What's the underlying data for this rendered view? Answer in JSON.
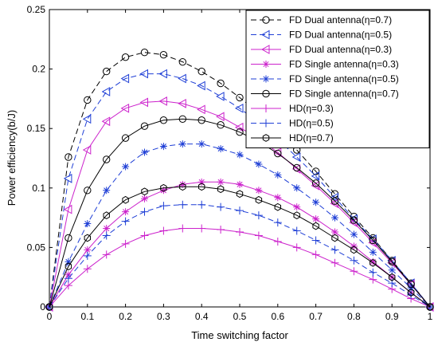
{
  "chart_data": {
    "type": "line",
    "xlabel": "Time switching factor",
    "ylabel": "Power efficiency(b/J)",
    "xlim": [
      0,
      1
    ],
    "ylim": [
      0,
      0.25
    ],
    "x_ticks": [
      "0",
      "0.1",
      "0.2",
      "0.3",
      "0.4",
      "0.5",
      "0.6",
      "0.7",
      "0.8",
      "0.9",
      "1"
    ],
    "y_ticks": [
      "0",
      "0.05",
      "0.1",
      "0.15",
      "0.2",
      "0.25"
    ],
    "grid": false,
    "legend_position": "top-right",
    "x": [
      0,
      0.05,
      0.1,
      0.15,
      0.2,
      0.25,
      0.3,
      0.35,
      0.4,
      0.45,
      0.5,
      0.55,
      0.6,
      0.65,
      0.7,
      0.75,
      0.8,
      0.85,
      0.9,
      0.95,
      1
    ],
    "series": [
      {
        "name": "FD Dual antenna(η=0.7)",
        "color": "#000000",
        "dash": "dashed",
        "marker": "circle",
        "values": [
          0,
          0.126,
          0.174,
          0.198,
          0.21,
          0.214,
          0.212,
          0.206,
          0.198,
          0.188,
          0.176,
          0.163,
          0.148,
          0.132,
          0.114,
          0.095,
          0.076,
          0.058,
          0.039,
          0.02,
          0
        ]
      },
      {
        "name": "FD Dual antenna(η=0.5)",
        "color": "#1f3fd6",
        "dash": "dashed",
        "marker": "triangle-left",
        "values": [
          0,
          0.108,
          0.158,
          0.181,
          0.192,
          0.196,
          0.196,
          0.192,
          0.186,
          0.177,
          0.167,
          0.155,
          0.141,
          0.126,
          0.11,
          0.092,
          0.074,
          0.057,
          0.039,
          0.02,
          0
        ]
      },
      {
        "name": "FD Dual antenna(η=0.3)",
        "color": "#cc22cc",
        "dash": "solid",
        "marker": "triangle-left",
        "values": [
          0,
          0.082,
          0.132,
          0.156,
          0.167,
          0.172,
          0.173,
          0.171,
          0.166,
          0.16,
          0.151,
          0.141,
          0.13,
          0.116,
          0.102,
          0.087,
          0.071,
          0.054,
          0.037,
          0.019,
          0
        ]
      },
      {
        "name": "FD Single antenna(η=0.3)",
        "color": "#cc22cc",
        "dash": "solid",
        "marker": "asterisk",
        "values": [
          0,
          0.027,
          0.048,
          0.066,
          0.08,
          0.091,
          0.098,
          0.103,
          0.105,
          0.105,
          0.103,
          0.098,
          0.092,
          0.084,
          0.074,
          0.063,
          0.051,
          0.038,
          0.025,
          0.012,
          0
        ]
      },
      {
        "name": "FD Single antenna(η=0.5)",
        "color": "#1f3fd6",
        "dash": "dashed",
        "marker": "asterisk",
        "values": [
          0,
          0.038,
          0.07,
          0.098,
          0.118,
          0.13,
          0.135,
          0.137,
          0.137,
          0.133,
          0.128,
          0.12,
          0.111,
          0.1,
          0.088,
          0.075,
          0.061,
          0.046,
          0.031,
          0.016,
          0
        ]
      },
      {
        "name": "FD Single antenna(η=0.7)",
        "color": "#000000",
        "dash": "solid",
        "marker": "circle",
        "values": [
          0,
          0.058,
          0.098,
          0.124,
          0.142,
          0.152,
          0.157,
          0.158,
          0.157,
          0.153,
          0.147,
          0.139,
          0.129,
          0.117,
          0.104,
          0.089,
          0.073,
          0.056,
          0.038,
          0.019,
          0
        ]
      },
      {
        "name": "HD(η=0.3)",
        "color": "#cc22cc",
        "dash": "solid",
        "marker": "plus",
        "values": [
          0,
          0.018,
          0.032,
          0.044,
          0.053,
          0.06,
          0.064,
          0.066,
          0.066,
          0.065,
          0.063,
          0.06,
          0.055,
          0.05,
          0.044,
          0.037,
          0.03,
          0.023,
          0.015,
          0.007,
          0
        ]
      },
      {
        "name": "HD(η=0.5)",
        "color": "#1f3fd6",
        "dash": "dashed",
        "marker": "plus",
        "values": [
          0,
          0.024,
          0.043,
          0.06,
          0.072,
          0.08,
          0.085,
          0.086,
          0.086,
          0.084,
          0.081,
          0.077,
          0.071,
          0.064,
          0.056,
          0.048,
          0.039,
          0.029,
          0.02,
          0.01,
          0
        ]
      },
      {
        "name": "HD(η=0.7)",
        "color": "#000000",
        "dash": "solid",
        "marker": "hexagon",
        "values": [
          0,
          0.034,
          0.058,
          0.077,
          0.09,
          0.097,
          0.1,
          0.101,
          0.101,
          0.099,
          0.095,
          0.09,
          0.084,
          0.077,
          0.068,
          0.058,
          0.048,
          0.037,
          0.025,
          0.012,
          0
        ]
      }
    ]
  }
}
